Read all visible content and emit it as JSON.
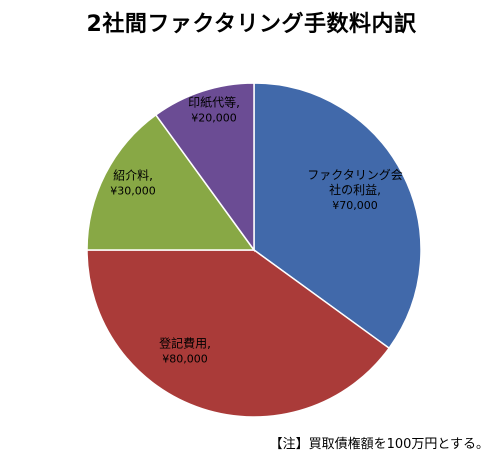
{
  "chart_data": {
    "type": "pie",
    "title": "2社間ファクタリング手数料内訳",
    "note": "【注】買取債権額を100万円とする。",
    "slices": [
      {
        "label": "ファクタリング会社の利益",
        "label_lines": [
          "ファクタリング会",
          "社の利益,"
        ],
        "value": 70000,
        "value_text": "¥70,000",
        "color": "#4169AA"
      },
      {
        "label": "登記費用",
        "label_lines": [
          "登記費用,"
        ],
        "value": 80000,
        "value_text": "¥80,000",
        "color": "#AA3B39"
      },
      {
        "label": "紹介料",
        "label_lines": [
          "紹介料,"
        ],
        "value": 30000,
        "value_text": "¥30,000",
        "color": "#88A845"
      },
      {
        "label": "印紙代等",
        "label_lines": [
          "印紙代等,"
        ],
        "value": 20000,
        "value_text": "¥20,000",
        "color": "#6B4C94"
      }
    ]
  }
}
